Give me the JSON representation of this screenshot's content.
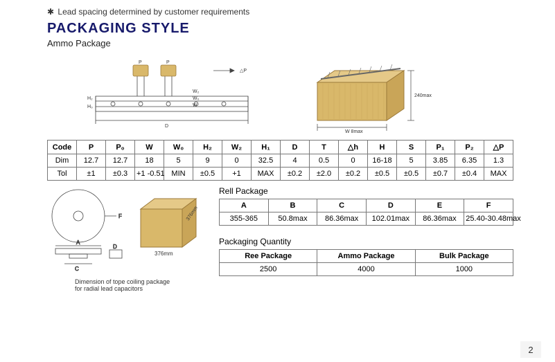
{
  "note": "Lead spacing determined by customer requirements",
  "heading": "PACKAGING STYLE",
  "subhead": "Ammo Package",
  "colors": {
    "heading": "#171a6b",
    "box_fill": "#d9b86a",
    "box_stroke": "#9c7a3a",
    "border": "#777777",
    "bg": "#ffffff",
    "text": "#000000"
  },
  "ammo_table": {
    "headers": [
      "Code",
      "P",
      "P₀",
      "W",
      "W₀",
      "H₂",
      "W₂",
      "H₁",
      "D",
      "T",
      "△h",
      "H",
      "S",
      "P₁",
      "P₂",
      "△P"
    ],
    "dim": [
      "Dim",
      "12.7",
      "12.7",
      "18",
      "5",
      "9",
      "0",
      "32.5",
      "4",
      "0.5",
      "0",
      "16-18",
      "5",
      "3.85",
      "6.35",
      "1.3"
    ],
    "tol": [
      "Tol",
      "±1",
      "±0.3",
      "+1\n-0.51",
      "MIN",
      "±0.5",
      "+1",
      "MAX",
      "±0.2",
      "±2.0",
      "±0.2",
      "±0.5",
      "±0.5",
      "±0.7",
      "±0.4",
      "MAX"
    ]
  },
  "rell_label": "Rell Package",
  "rell_table": {
    "headers": [
      "A",
      "B",
      "C",
      "D",
      "E",
      "F"
    ],
    "values": [
      "355-365",
      "50.8max",
      "86.36max",
      "102.01max",
      "86.36max",
      "25.40-30.48max"
    ]
  },
  "qty_label": "Packaging Quantity",
  "qty_table": {
    "headers": [
      "Ree Package",
      "Ammo Package",
      "Bulk Package"
    ],
    "values": [
      "2500",
      "4000",
      "1000"
    ]
  },
  "dim_caption_l1": "Dimension of tope coiling package",
  "dim_caption_l2": "for radial lead capacitors",
  "box_label_1": "376mm",
  "box_label_2": "376mm",
  "box_right_label": "240max",
  "page_num": "2"
}
